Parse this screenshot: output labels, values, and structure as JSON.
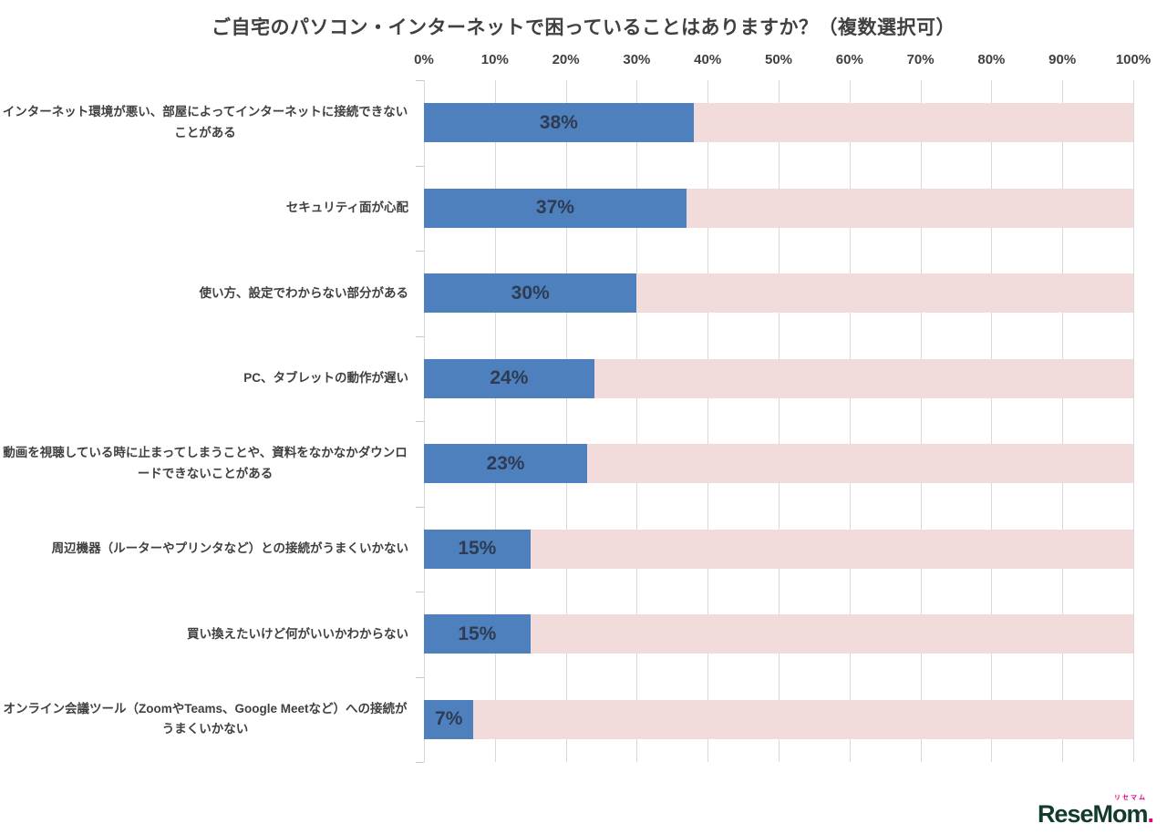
{
  "title": "ご自宅のパソコン・インターネットで困っていることはありますか？（複数選択可）",
  "chart_data": {
    "type": "bar",
    "orientation": "horizontal",
    "title": "ご自宅のパソコン・インターネットで困っていることはありますか？（複数選択可）",
    "categories": [
      "インターネット環境が悪い、部屋によってインターネットに接続できないことがある",
      "セキュリティ面が心配",
      "使い方、設定でわからない部分がある",
      "PC、タブレットの動作が遅い",
      "動画を視聴している時に止まってしまうことや、資料をなかなかダウンロードできないことがある",
      "周辺機器（ルーターやプリンタなど）との接続がうまくいかない",
      "買い換えたいけど何がいいかわからない",
      "オンライン会議ツール（ZoomやTeams、Google Meetなど）への接続がうまくいかない"
    ],
    "values": [
      38,
      37,
      30,
      24,
      23,
      15,
      15,
      7
    ],
    "value_labels": [
      "38%",
      "37%",
      "30%",
      "24%",
      "23%",
      "15%",
      "15%",
      "7%"
    ],
    "xlim": [
      0,
      100
    ],
    "x_ticks": [
      "0%",
      "10%",
      "20%",
      "30%",
      "40%",
      "50%",
      "60%",
      "70%",
      "80%",
      "90%",
      "100%"
    ],
    "grid": "vertical",
    "legend": "none",
    "bar_color": "#4D80BD",
    "track_color": "#F2DCDB",
    "value_label_color": "#2E3B52",
    "gridline_color": "#D9D9D9"
  },
  "footer": {
    "logo_text": "ReseMom",
    "logo_dot": ".",
    "logo_kana": "リセマム",
    "logo_color": "#123B2D",
    "logo_accent_color": "#E4007F"
  }
}
